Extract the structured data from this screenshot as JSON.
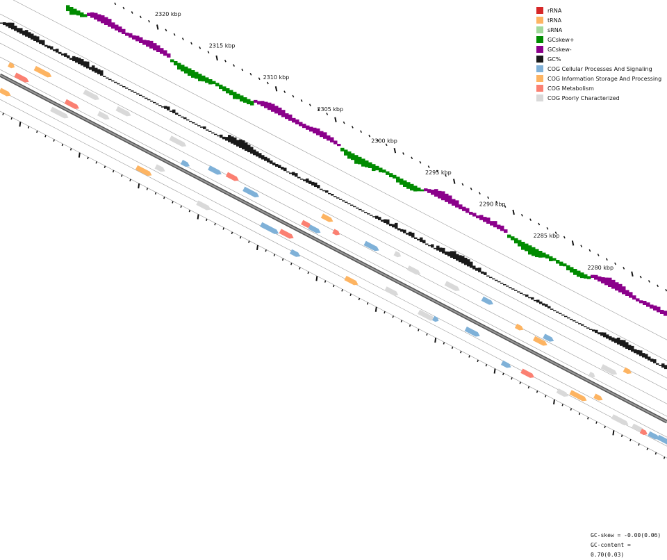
{
  "legend": [
    {
      "label": "rRNA",
      "color": "#d62728"
    },
    {
      "label": "tRNA",
      "color": "#fdb462"
    },
    {
      "label": "sRNA",
      "color": "#a1d99b"
    },
    {
      "label": "GCskew+",
      "color": "#008b00"
    },
    {
      "label": "GCskew-",
      "color": "#8b008b"
    },
    {
      "label": "GC%",
      "color": "#1a1a1a"
    },
    {
      "label": "COG Cellular Processes And Signaling",
      "color": "#7fb1d8"
    },
    {
      "label": "COG Information Storage And Processing",
      "color": "#fdb462"
    },
    {
      "label": "COG Metabolism",
      "color": "#fb8072"
    },
    {
      "label": "COG Poorly Characterized",
      "color": "#d9d9d9"
    }
  ],
  "scale_labels": [
    "2320 kbp",
    "2315 kbp",
    "2310 kbp",
    "2305 kbp",
    "2300 kbp",
    "2295 kbp",
    "2290 kbp",
    "2285 kbp",
    "2280 kbp"
  ],
  "stats": {
    "gc_skew": "GC-skew = -0.00(0.06)",
    "gc_content": "GC-content = 0.70(0.03)"
  }
}
